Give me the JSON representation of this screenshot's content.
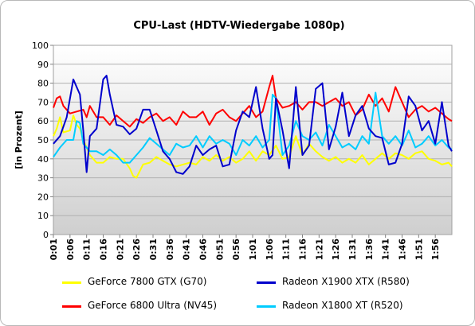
{
  "chart_data": {
    "type": "line",
    "title": "CPU-Last (HDTV-Wiedergabe 1080p)",
    "xlabel": "",
    "ylabel": "[in Prozent]",
    "ylim": [
      0,
      100
    ],
    "yticks": [
      0,
      10,
      20,
      30,
      40,
      50,
      60,
      70,
      80,
      90,
      100
    ],
    "xlim": [
      1,
      121
    ],
    "xtick_labels": [
      "0:01",
      "0:06",
      "0:11",
      "0:16",
      "0:21",
      "0:26",
      "0:31",
      "0:36",
      "0:41",
      "0:46",
      "0:51",
      "0:56",
      "1:01",
      "1:06",
      "1:11",
      "1:16",
      "1:21",
      "1:26",
      "1:31",
      "1:36",
      "1:41",
      "1:46",
      "1:51",
      "1:56"
    ],
    "grid": "horizontal",
    "legend_position": "bottom",
    "series": [
      {
        "name": "GeForce 7800 GTX (G70)",
        "color": "#ffff00",
        "points": [
          [
            1,
            52
          ],
          [
            2,
            56
          ],
          [
            3,
            62
          ],
          [
            4,
            54
          ],
          [
            6,
            55
          ],
          [
            7,
            63
          ],
          [
            8,
            58
          ],
          [
            9,
            56
          ],
          [
            10,
            50
          ],
          [
            11,
            46
          ],
          [
            12,
            42
          ],
          [
            14,
            38
          ],
          [
            16,
            38
          ],
          [
            18,
            41
          ],
          [
            20,
            40
          ],
          [
            22,
            40
          ],
          [
            24,
            35
          ],
          [
            25,
            31
          ],
          [
            26,
            30
          ],
          [
            28,
            37
          ],
          [
            30,
            38
          ],
          [
            32,
            41
          ],
          [
            34,
            39
          ],
          [
            36,
            37
          ],
          [
            38,
            36
          ],
          [
            40,
            37
          ],
          [
            42,
            38
          ],
          [
            44,
            37
          ],
          [
            46,
            41
          ],
          [
            48,
            39
          ],
          [
            50,
            42
          ],
          [
            52,
            39
          ],
          [
            54,
            41
          ],
          [
            56,
            38
          ],
          [
            58,
            40
          ],
          [
            60,
            44
          ],
          [
            62,
            39
          ],
          [
            64,
            44
          ],
          [
            66,
            42
          ],
          [
            68,
            47
          ],
          [
            70,
            40
          ],
          [
            72,
            41
          ],
          [
            74,
            52
          ],
          [
            76,
            42
          ],
          [
            78,
            48
          ],
          [
            80,
            44
          ],
          [
            82,
            41
          ],
          [
            84,
            39
          ],
          [
            86,
            41
          ],
          [
            88,
            38
          ],
          [
            90,
            40
          ],
          [
            92,
            38
          ],
          [
            94,
            42
          ],
          [
            96,
            37
          ],
          [
            98,
            40
          ],
          [
            100,
            43
          ],
          [
            102,
            40
          ],
          [
            104,
            43
          ],
          [
            106,
            42
          ],
          [
            108,
            40
          ],
          [
            110,
            43
          ],
          [
            112,
            44
          ],
          [
            114,
            40
          ],
          [
            116,
            39
          ],
          [
            118,
            37
          ],
          [
            120,
            38
          ],
          [
            121,
            36
          ]
        ]
      },
      {
        "name": "GeForce 6800 Ultra (NV45)",
        "color": "#ff0000",
        "points": [
          [
            1,
            67
          ],
          [
            2,
            72
          ],
          [
            3,
            73
          ],
          [
            4,
            68
          ],
          [
            6,
            64
          ],
          [
            8,
            65
          ],
          [
            10,
            66
          ],
          [
            11,
            62
          ],
          [
            12,
            68
          ],
          [
            14,
            62
          ],
          [
            16,
            62
          ],
          [
            18,
            58
          ],
          [
            20,
            63
          ],
          [
            22,
            60
          ],
          [
            24,
            57
          ],
          [
            26,
            61
          ],
          [
            28,
            59
          ],
          [
            30,
            62
          ],
          [
            32,
            64
          ],
          [
            34,
            60
          ],
          [
            36,
            62
          ],
          [
            38,
            58
          ],
          [
            40,
            65
          ],
          [
            42,
            62
          ],
          [
            44,
            62
          ],
          [
            46,
            65
          ],
          [
            48,
            58
          ],
          [
            50,
            64
          ],
          [
            52,
            66
          ],
          [
            54,
            62
          ],
          [
            56,
            60
          ],
          [
            58,
            64
          ],
          [
            60,
            68
          ],
          [
            62,
            62
          ],
          [
            64,
            65
          ],
          [
            66,
            78
          ],
          [
            67,
            84
          ],
          [
            68,
            72
          ],
          [
            70,
            67
          ],
          [
            72,
            68
          ],
          [
            74,
            70
          ],
          [
            76,
            66
          ],
          [
            78,
            70
          ],
          [
            80,
            70
          ],
          [
            82,
            68
          ],
          [
            84,
            70
          ],
          [
            86,
            72
          ],
          [
            88,
            68
          ],
          [
            90,
            70
          ],
          [
            92,
            63
          ],
          [
            94,
            66
          ],
          [
            96,
            74
          ],
          [
            98,
            68
          ],
          [
            100,
            72
          ],
          [
            102,
            65
          ],
          [
            104,
            78
          ],
          [
            106,
            70
          ],
          [
            108,
            62
          ],
          [
            110,
            66
          ],
          [
            112,
            68
          ],
          [
            114,
            65
          ],
          [
            116,
            67
          ],
          [
            118,
            64
          ],
          [
            120,
            61
          ],
          [
            121,
            60
          ]
        ]
      },
      {
        "name": "Radeon X1900 XTX (R580)",
        "color": "#0000cc",
        "points": [
          [
            1,
            48
          ],
          [
            3,
            52
          ],
          [
            5,
            62
          ],
          [
            7,
            82
          ],
          [
            9,
            74
          ],
          [
            10,
            55
          ],
          [
            11,
            33
          ],
          [
            12,
            52
          ],
          [
            14,
            56
          ],
          [
            16,
            82
          ],
          [
            17,
            84
          ],
          [
            18,
            74
          ],
          [
            20,
            58
          ],
          [
            22,
            57
          ],
          [
            24,
            53
          ],
          [
            26,
            56
          ],
          [
            28,
            66
          ],
          [
            30,
            66
          ],
          [
            32,
            55
          ],
          [
            34,
            44
          ],
          [
            36,
            40
          ],
          [
            38,
            33
          ],
          [
            40,
            32
          ],
          [
            42,
            36
          ],
          [
            44,
            47
          ],
          [
            46,
            42
          ],
          [
            48,
            45
          ],
          [
            50,
            47
          ],
          [
            52,
            36
          ],
          [
            54,
            37
          ],
          [
            56,
            55
          ],
          [
            58,
            65
          ],
          [
            60,
            62
          ],
          [
            62,
            78
          ],
          [
            64,
            56
          ],
          [
            66,
            40
          ],
          [
            67,
            42
          ],
          [
            68,
            72
          ],
          [
            70,
            55
          ],
          [
            72,
            35
          ],
          [
            74,
            78
          ],
          [
            76,
            42
          ],
          [
            78,
            47
          ],
          [
            80,
            77
          ],
          [
            82,
            80
          ],
          [
            84,
            45
          ],
          [
            86,
            57
          ],
          [
            88,
            75
          ],
          [
            90,
            52
          ],
          [
            92,
            63
          ],
          [
            94,
            68
          ],
          [
            96,
            56
          ],
          [
            98,
            52
          ],
          [
            100,
            51
          ],
          [
            102,
            37
          ],
          [
            104,
            38
          ],
          [
            106,
            48
          ],
          [
            108,
            73
          ],
          [
            110,
            68
          ],
          [
            112,
            55
          ],
          [
            114,
            60
          ],
          [
            116,
            48
          ],
          [
            118,
            70
          ],
          [
            120,
            47
          ],
          [
            121,
            44
          ]
        ]
      },
      {
        "name": "Radeon X1800 XT (R520)",
        "color": "#00ccff",
        "points": [
          [
            1,
            41
          ],
          [
            3,
            46
          ],
          [
            5,
            50
          ],
          [
            7,
            50
          ],
          [
            8,
            60
          ],
          [
            9,
            59
          ],
          [
            10,
            48
          ],
          [
            12,
            44
          ],
          [
            14,
            44
          ],
          [
            16,
            42
          ],
          [
            18,
            45
          ],
          [
            20,
            42
          ],
          [
            22,
            38
          ],
          [
            24,
            38
          ],
          [
            26,
            42
          ],
          [
            28,
            46
          ],
          [
            30,
            51
          ],
          [
            32,
            48
          ],
          [
            34,
            45
          ],
          [
            36,
            42
          ],
          [
            38,
            48
          ],
          [
            40,
            46
          ],
          [
            42,
            47
          ],
          [
            44,
            52
          ],
          [
            46,
            46
          ],
          [
            48,
            52
          ],
          [
            50,
            48
          ],
          [
            52,
            50
          ],
          [
            54,
            48
          ],
          [
            56,
            42
          ],
          [
            58,
            50
          ],
          [
            60,
            47
          ],
          [
            62,
            52
          ],
          [
            64,
            46
          ],
          [
            66,
            50
          ],
          [
            67,
            74
          ],
          [
            68,
            72
          ],
          [
            70,
            42
          ],
          [
            72,
            47
          ],
          [
            74,
            60
          ],
          [
            76,
            52
          ],
          [
            78,
            50
          ],
          [
            80,
            54
          ],
          [
            82,
            47
          ],
          [
            84,
            58
          ],
          [
            86,
            52
          ],
          [
            88,
            46
          ],
          [
            90,
            48
          ],
          [
            92,
            45
          ],
          [
            94,
            52
          ],
          [
            96,
            48
          ],
          [
            98,
            75
          ],
          [
            100,
            52
          ],
          [
            102,
            48
          ],
          [
            104,
            52
          ],
          [
            106,
            47
          ],
          [
            108,
            55
          ],
          [
            110,
            46
          ],
          [
            112,
            48
          ],
          [
            114,
            52
          ],
          [
            116,
            47
          ],
          [
            118,
            50
          ],
          [
            120,
            46
          ],
          [
            121,
            45
          ]
        ]
      }
    ]
  }
}
